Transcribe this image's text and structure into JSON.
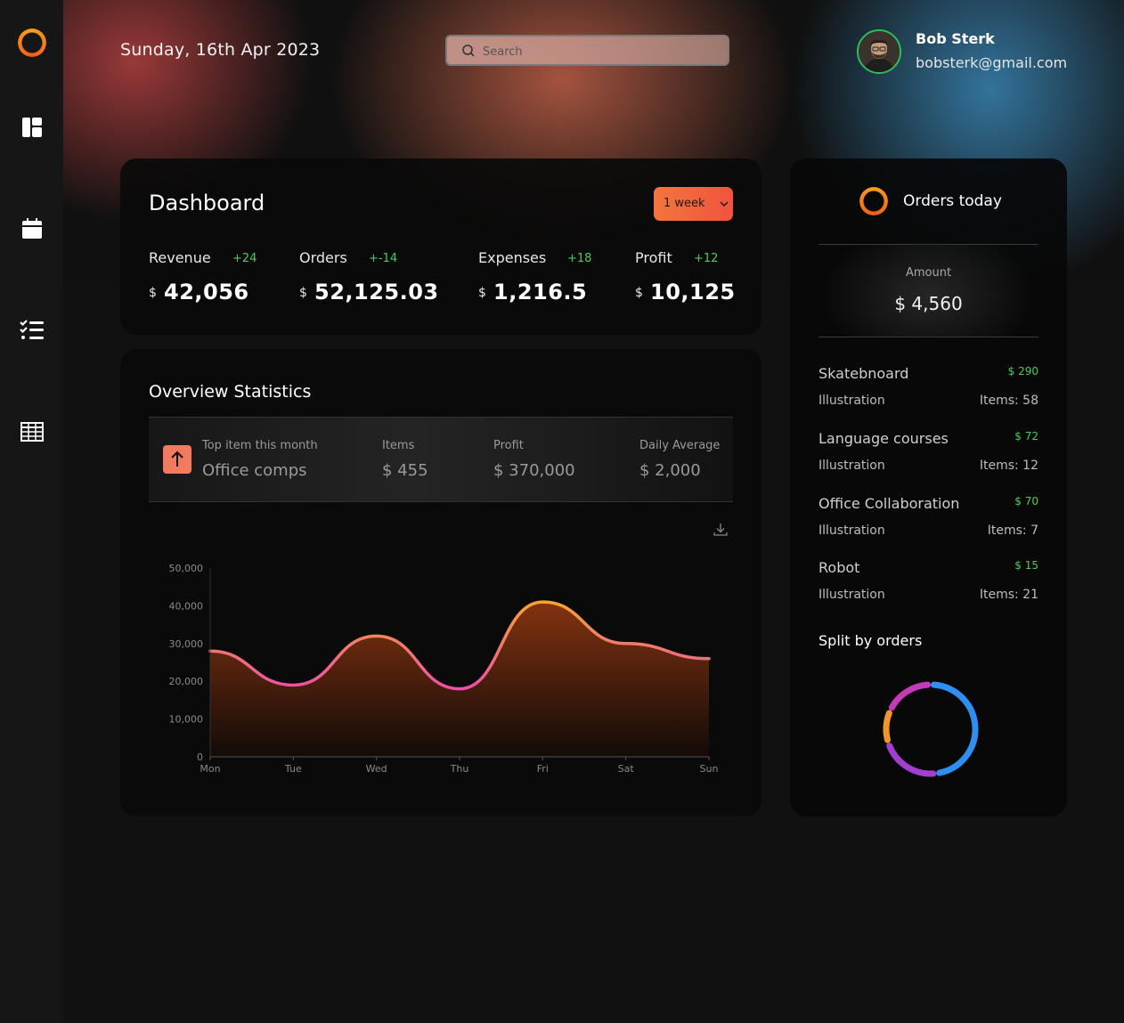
{
  "header": {
    "date": "Sunday, 16th Apr 2023",
    "search_placeholder": "Search",
    "user": {
      "name": "Bob Sterk",
      "email": "bobsterk@gmail.com"
    }
  },
  "sidebar": {
    "items": [
      {
        "icon": "layout-icon"
      },
      {
        "icon": "calendar-icon"
      },
      {
        "icon": "checklist-icon"
      },
      {
        "icon": "table-icon"
      }
    ]
  },
  "dashboard": {
    "title": "Dashboard",
    "range": "1 week",
    "currency": "$",
    "metrics": [
      {
        "label": "Revenue",
        "delta": "+24",
        "value": "42,056"
      },
      {
        "label": "Orders",
        "delta": "+-14",
        "value": "52,125.03"
      },
      {
        "label": "Expenses",
        "delta": "+18",
        "value": "1,216.5"
      },
      {
        "label": "Profit",
        "delta": "+12",
        "value": "10,125"
      }
    ]
  },
  "overview": {
    "title": "Overview Statistics",
    "top_item": {
      "label": "Top item this month",
      "value": "Office comps",
      "items_label": "Items",
      "items_value": "$ 455",
      "profit_label": "Profit",
      "profit_value": "$ 370,000",
      "avg_label": "Daily Average",
      "avg_value": "$ 2,000"
    }
  },
  "chart_data": {
    "type": "area",
    "categories": [
      "Mon",
      "Tue",
      "Wed",
      "Thu",
      "Fri",
      "Sat",
      "Sun"
    ],
    "values": [
      28000,
      19000,
      32000,
      18000,
      41000,
      30000,
      26000
    ],
    "yticks": [
      "0",
      "10,000",
      "20,000",
      "30,000",
      "40,000",
      "50,000"
    ],
    "ylim": [
      0,
      50000
    ],
    "colors": {
      "line_low": "#ee4fa8",
      "line_high": "#f6a531",
      "fill_top": "#8a3510",
      "fill_bottom": "#140b08"
    }
  },
  "orders_today": {
    "title": "Orders today",
    "amount_label": "Amount",
    "amount_value": "$ 4,560",
    "items": [
      {
        "name": "Skatebnoard",
        "price": "$ 290",
        "category": "Illustration",
        "count": "Items: 58"
      },
      {
        "name": "Language courses",
        "price": "$ 72",
        "category": "Illustration",
        "count": "Items: 12"
      },
      {
        "name": "Office Collaboration",
        "price": "$ 70",
        "category": "Illustration",
        "count": "Items: 7"
      },
      {
        "name": "Robot",
        "price": "$ 15",
        "category": "Illustration",
        "count": "Items: 21"
      }
    ],
    "split_title": "Split by orders",
    "split_segments": [
      {
        "value": 48,
        "color": "#2f8ff0"
      },
      {
        "value": 22,
        "color": "#a23fd0"
      },
      {
        "value": 12,
        "color": "#f0952a"
      },
      {
        "value": 18,
        "color": "#c33bb8"
      }
    ]
  }
}
